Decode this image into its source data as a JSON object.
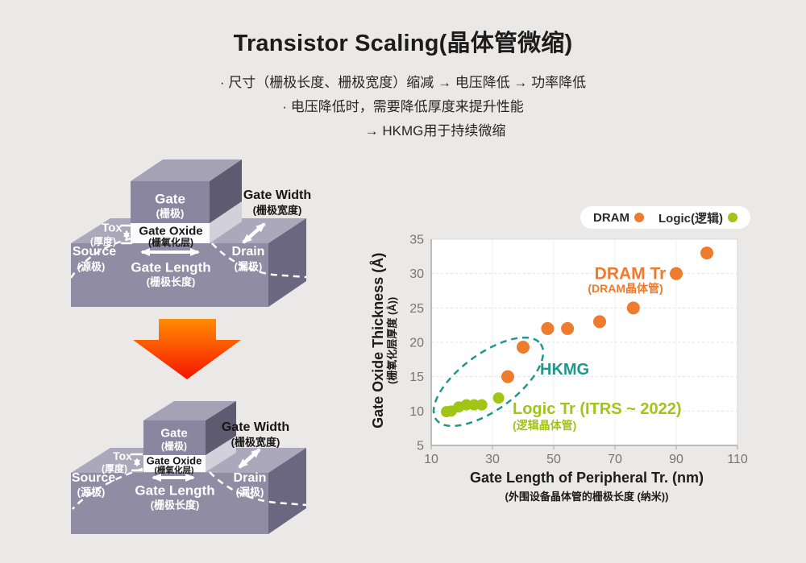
{
  "header": {
    "title": "Transistor Scaling(晶体管微缩)",
    "bullets": [
      "· 尺寸（栅极长度、栅极宽度）缩减 → 电压降低 → 功率降低",
      "· 电压降低时，需要降低厚度来提升性能",
      "→ HKMG用于持续微缩"
    ]
  },
  "diagram": {
    "labels": {
      "gate": "Gate",
      "gate_cn": "(栅极)",
      "gate_width": "Gate Width",
      "gate_width_cn": "(栅极宽度)",
      "gate_oxide": "Gate Oxide",
      "gate_oxide_cn": "(栅氧化层)",
      "tox": "Tox",
      "tox_cn": "(厚度)",
      "source": "Source",
      "source_cn": "(源极)",
      "drain": "Drain",
      "drain_cn": "(漏极)",
      "gate_length": "Gate Length",
      "gate_length_cn": "(栅极长度)"
    },
    "colors": {
      "block_front": "#908ca4",
      "block_top": "#aba8bb",
      "block_right": "#6b6781",
      "gate_front": "#8a86a0",
      "gate_top": "#a5a2b6",
      "gate_right": "#5e5a6f",
      "oxide": "#fcfcfe",
      "oxide_side": "#d2d1db",
      "arrow_top": "#ff8c00",
      "arrow_bottom": "#f41500"
    }
  },
  "legend": {
    "items": [
      {
        "label": "DRAM",
        "color": "#ee7c2e"
      },
      {
        "label": "Logic(逻辑)",
        "color": "#a0c516"
      }
    ]
  },
  "chart_data": {
    "type": "scatter",
    "xlabel": "Gate Length of Peripheral Tr. (nm)",
    "xlabel_cn": "(外围设备晶体管的栅极长度 (纳米))",
    "ylabel": "Gate Oxide Thickness (Å)",
    "ylabel_cn": "(栅氧化层厚度 (Å))",
    "xlim": [
      10,
      110
    ],
    "ylim": [
      5,
      35
    ],
    "xticks": [
      10,
      30,
      50,
      70,
      90,
      110
    ],
    "yticks": [
      5,
      10,
      15,
      20,
      25,
      30,
      35
    ],
    "grid": true,
    "legend_position": "top-right",
    "series": [
      {
        "name": "DRAM",
        "color": "#ee7c2e",
        "points": [
          [
            35,
            15
          ],
          [
            40,
            19.3
          ],
          [
            48,
            22
          ],
          [
            54.5,
            22
          ],
          [
            65,
            23
          ],
          [
            76,
            25
          ],
          [
            90,
            30
          ],
          [
            100,
            33
          ]
        ]
      },
      {
        "name": "Logic(逻辑)",
        "color": "#a0c516",
        "points": [
          [
            15,
            9.9
          ],
          [
            16.5,
            10
          ],
          [
            19,
            10.6
          ],
          [
            21.5,
            10.9
          ],
          [
            24,
            10.9
          ],
          [
            26.5,
            10.9
          ],
          [
            32,
            11.9
          ]
        ]
      }
    ],
    "annotations": [
      {
        "text": "DRAM Tr",
        "sub": "(DRAM晶体管)",
        "color": "#ee7b2d"
      },
      {
        "text": "HKMG",
        "color": "#20978a"
      },
      {
        "text": "Logic Tr (ITRS ~ 2022)",
        "sub": "(逻辑晶体管)",
        "color": "#a0c516"
      }
    ]
  }
}
